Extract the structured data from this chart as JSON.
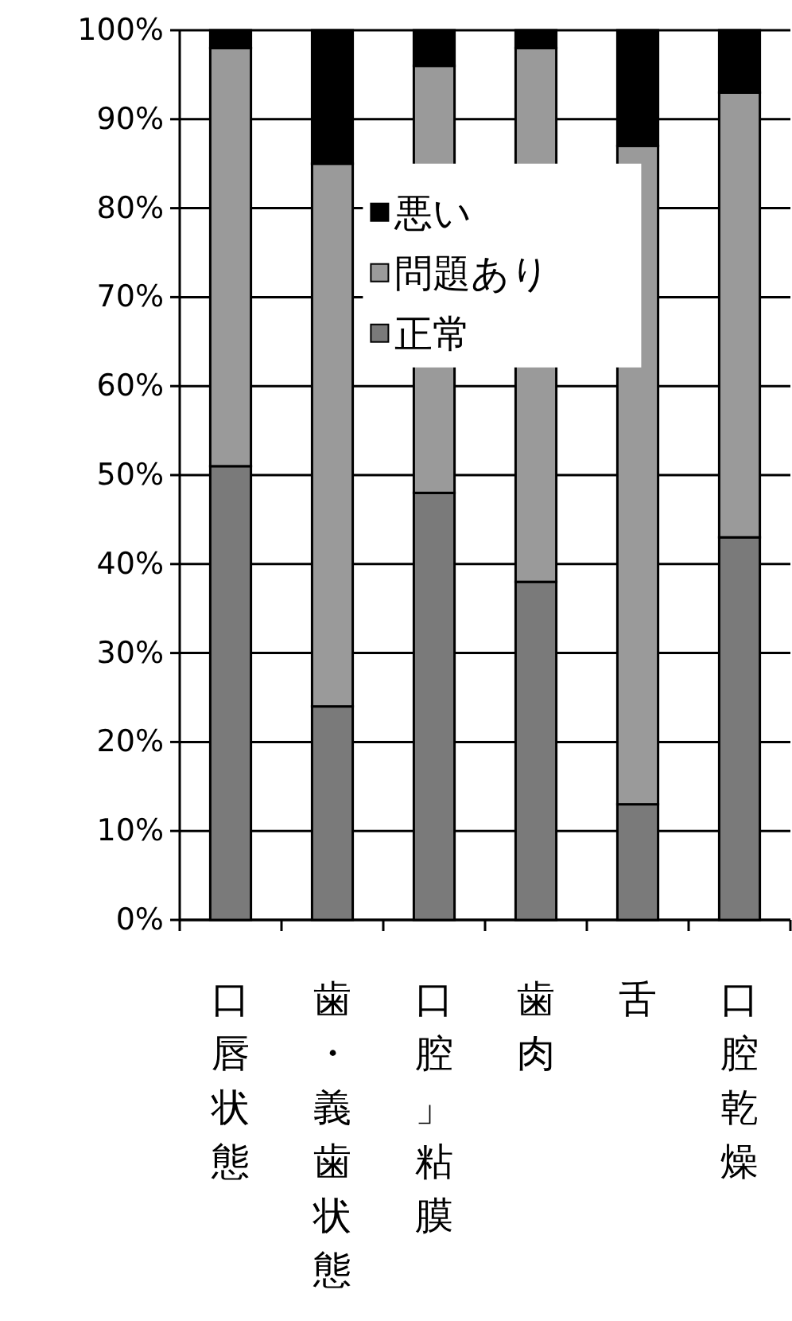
{
  "chart_data": {
    "type": "bar",
    "stacked": true,
    "categories": [
      "口唇状態",
      "歯・義歯状態",
      "口腔」粘膜",
      "歯肉",
      "舌",
      "口腔乾燥"
    ],
    "series": [
      {
        "name": "正常",
        "color": "#7a7a7a",
        "values": [
          51,
          24,
          48,
          38,
          13,
          43
        ]
      },
      {
        "name": "問題あり",
        "color": "#9a9a9a",
        "values": [
          47,
          61,
          48,
          60,
          74,
          50
        ]
      },
      {
        "name": "悪い",
        "color": "#000000",
        "values": [
          2,
          15,
          4,
          2,
          13,
          7
        ]
      }
    ],
    "ylim": [
      0,
      100
    ],
    "yticks": [
      {
        "value": 0,
        "label": "0%"
      },
      {
        "value": 10,
        "label": "10%"
      },
      {
        "value": 20,
        "label": "20%"
      },
      {
        "value": 30,
        "label": "30%"
      },
      {
        "value": 40,
        "label": "40%"
      },
      {
        "value": 50,
        "label": "50%"
      },
      {
        "value": 60,
        "label": "60%"
      },
      {
        "value": 70,
        "label": "70%"
      },
      {
        "value": 80,
        "label": "80%"
      },
      {
        "value": 90,
        "label": "90%"
      },
      {
        "value": 100,
        "label": "100%"
      }
    ],
    "grid": "y",
    "legend": "top"
  }
}
